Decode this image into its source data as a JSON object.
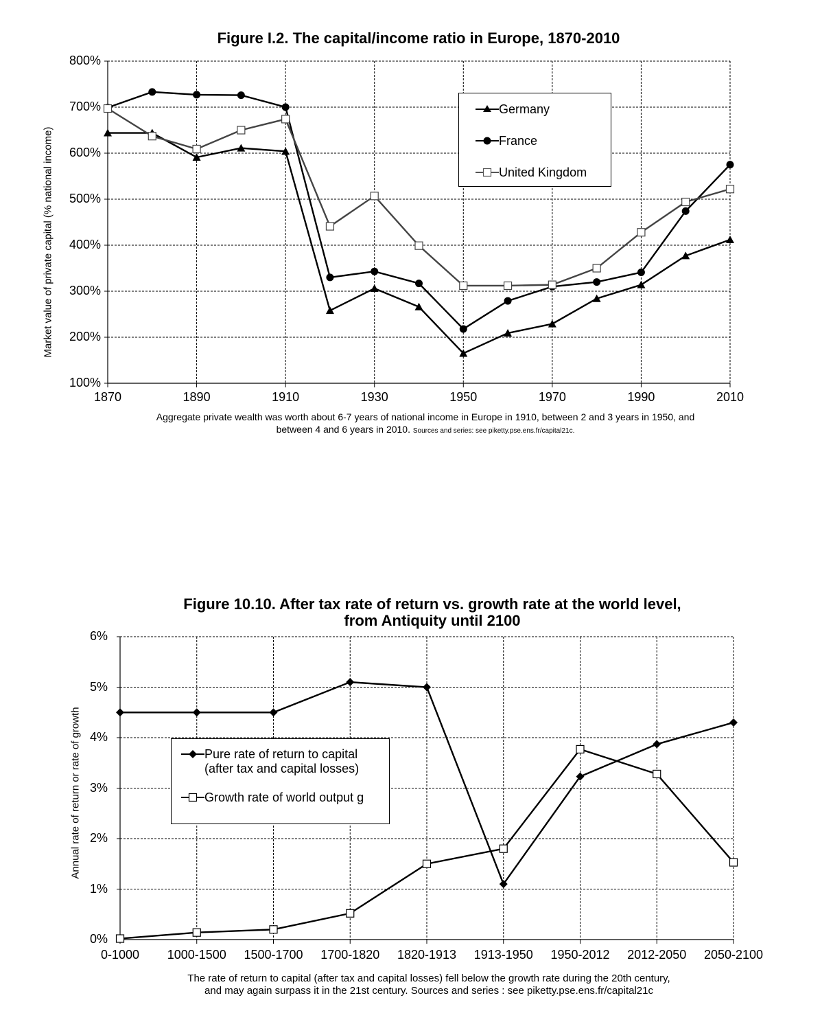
{
  "chart_data": [
    {
      "type": "line",
      "title": "Figure I.2. The capital/income ratio in Europe, 1870-2010",
      "ylabel": "Market value of private capital (% national income)",
      "xlabel": "",
      "x": [
        1870,
        1880,
        1890,
        1900,
        1910,
        1920,
        1930,
        1940,
        1950,
        1960,
        1970,
        1980,
        1990,
        2000,
        2010
      ],
      "xticks": [
        "1870",
        "1890",
        "1910",
        "1930",
        "1950",
        "1970",
        "1990",
        "2010"
      ],
      "xtick_values": [
        1870,
        1890,
        1910,
        1930,
        1950,
        1970,
        1990,
        2010
      ],
      "yticks": [
        "100%",
        "200%",
        "300%",
        "400%",
        "500%",
        "600%",
        "700%",
        "800%"
      ],
      "ylim": [
        100,
        800
      ],
      "xlim": [
        1870,
        2010
      ],
      "grid": true,
      "legend_position": "top-right",
      "series": [
        {
          "name": "Germany",
          "marker": "triangle",
          "values": [
            644,
            644,
            591,
            611,
            604,
            258,
            306,
            266,
            165,
            209,
            229,
            284,
            314,
            377,
            412
          ]
        },
        {
          "name": "France",
          "marker": "circle",
          "values": [
            699,
            733,
            727,
            726,
            700,
            330,
            343,
            317,
            218,
            279,
            310,
            320,
            341,
            474,
            575
          ]
        },
        {
          "name": "United Kingdom",
          "marker": "square-open",
          "values": [
            697,
            637,
            609,
            650,
            674,
            441,
            507,
            399,
            312,
            312,
            314,
            350,
            428,
            494,
            522
          ]
        }
      ],
      "caption_main": "Aggregate private wealth was worth about 6-7 years of national income in Europe in 1910, between 2 and 3 years in 1950, and between 4 and 6 years in 2010.",
      "caption_small": "Sources and series: see piketty.pse.ens.fr/capital21c."
    },
    {
      "type": "line",
      "title_line1": "Figure 10.10. After tax rate of return vs. growth rate at the world level,",
      "title_line2": "from Antiquity until 2100",
      "ylabel": "Annual rate of return or rate of growth",
      "xlabel": "",
      "categories": [
        "0-1000",
        "1000-1500",
        "1500-1700",
        "1700-1820",
        "1820-1913",
        "1913-1950",
        "1950-2012",
        "2012-2050",
        "2050-2100"
      ],
      "yticks": [
        "0%",
        "1%",
        "2%",
        "3%",
        "4%",
        "5%",
        "6%"
      ],
      "ylim": [
        0,
        6
      ],
      "grid": true,
      "legend_position": "center-left",
      "series": [
        {
          "name": "Pure rate of return to capital (after tax and capital losses)",
          "legend_line1": "Pure rate of return to capital",
          "legend_line2": "(after tax and capital losses)",
          "marker": "diamond",
          "values": [
            4.5,
            4.5,
            4.5,
            5.1,
            5.0,
            1.1,
            3.23,
            3.87,
            4.3
          ]
        },
        {
          "name": "Growth rate of world output g",
          "marker": "square-open",
          "values": [
            0.02,
            0.14,
            0.2,
            0.52,
            1.5,
            1.8,
            3.77,
            3.28,
            1.53
          ]
        }
      ],
      "caption_line1": "The rate of return to capital (after tax and capital losses) fell below the growth rate during the 20th century,",
      "caption_line2": "and may again surpass it in the 21st century. Sources and series : see piketty.pse.ens.fr/capital21c"
    }
  ]
}
